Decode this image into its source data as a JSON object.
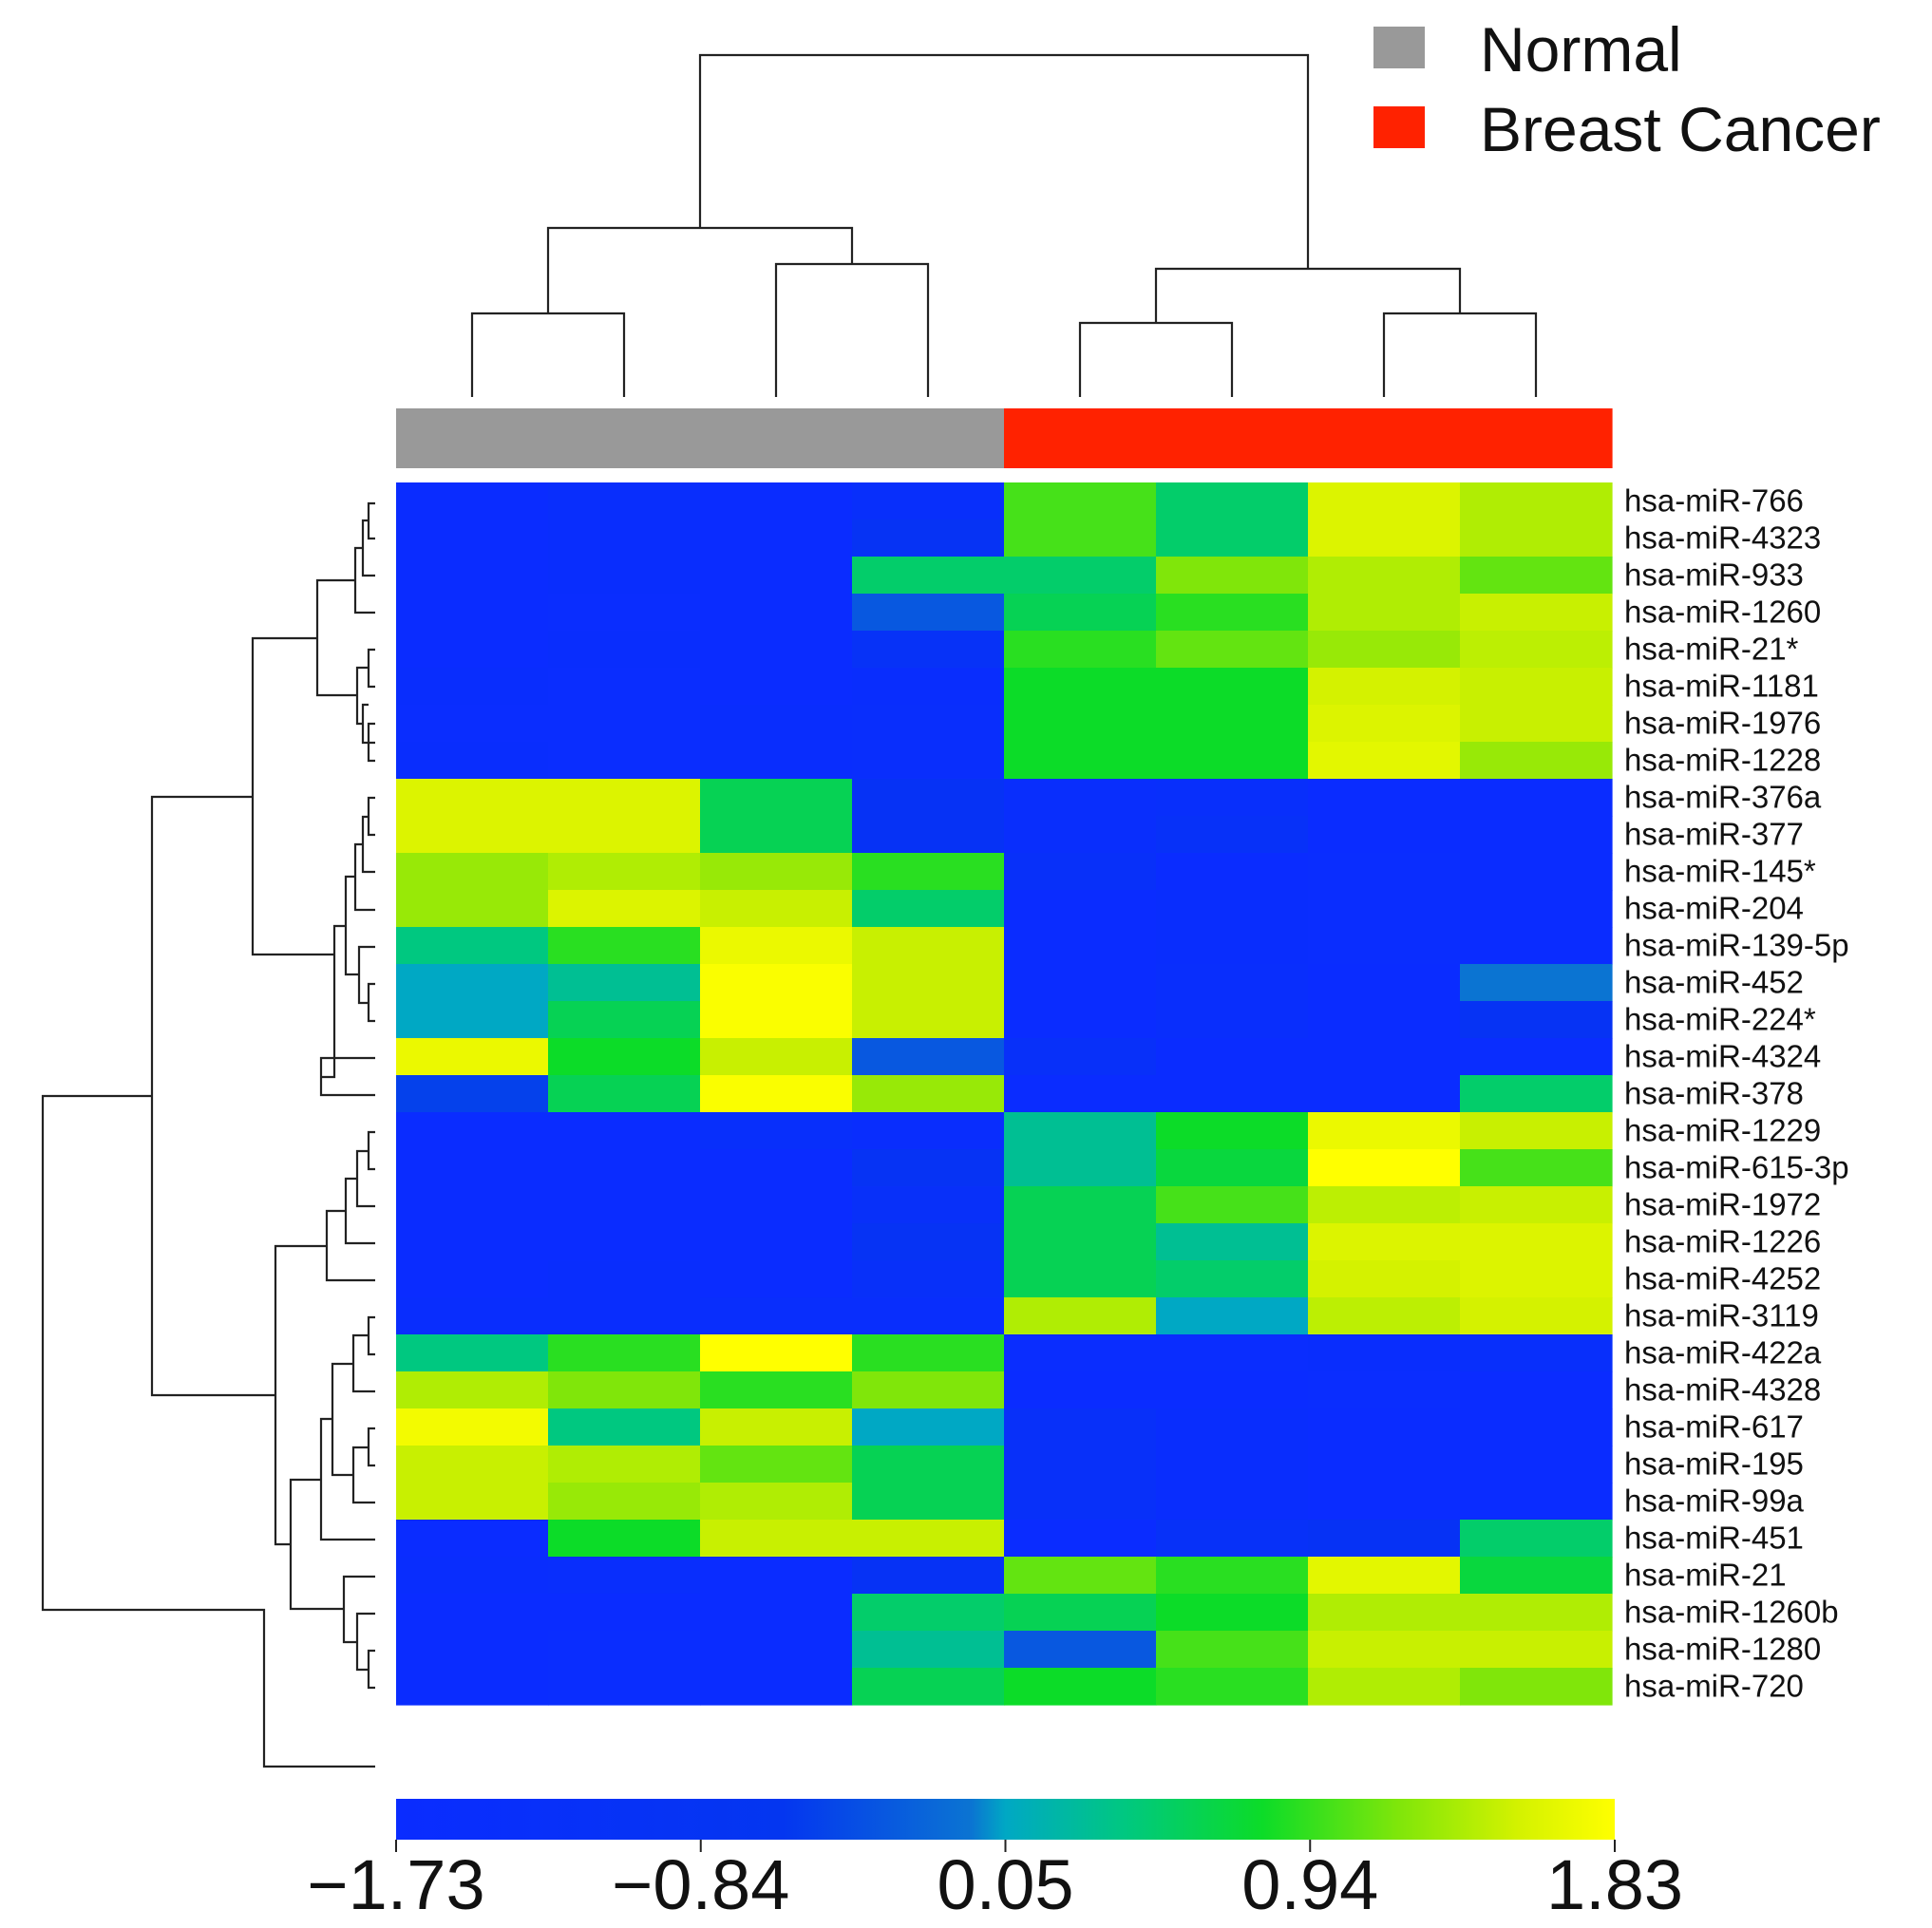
{
  "legend": [
    {
      "label": "Normal",
      "color": "#999999"
    },
    {
      "label": "Breast Cancer",
      "color": "#ff2200"
    }
  ],
  "colorbar": {
    "ticks": [
      "−1.73",
      "−0.84",
      "0.05",
      "0.94",
      "1.83"
    ],
    "tick_values": [
      -1.73,
      -0.84,
      0.05,
      0.94,
      1.83
    ],
    "stops": [
      {
        "v": -1.73,
        "c": "#0a2cff"
      },
      {
        "v": -0.6,
        "c": "#0436f0"
      },
      {
        "v": -0.05,
        "c": "#0b74d2"
      },
      {
        "v": 0.05,
        "c": "#00a8c4"
      },
      {
        "v": 0.4,
        "c": "#00c880"
      },
      {
        "v": 0.8,
        "c": "#0cdc28"
      },
      {
        "v": 1.2,
        "c": "#80e60a"
      },
      {
        "v": 1.55,
        "c": "#d4f200"
      },
      {
        "v": 1.83,
        "c": "#ffff00"
      }
    ]
  },
  "chart_data": {
    "type": "heatmap",
    "title": "",
    "vmin": -1.73,
    "vmax": 1.83,
    "samples": [
      {
        "group": "Normal"
      },
      {
        "group": "Normal"
      },
      {
        "group": "Normal"
      },
      {
        "group": "Normal"
      },
      {
        "group": "Breast Cancer"
      },
      {
        "group": "Breast Cancer"
      },
      {
        "group": "Breast Cancer"
      },
      {
        "group": "Breast Cancer"
      }
    ],
    "rows": [
      {
        "name": "hsa-miR-766",
        "values": [
          -1.7,
          -1.5,
          -1.7,
          -1.4,
          1.0,
          0.5,
          1.6,
          1.4
        ]
      },
      {
        "name": "hsa-miR-4323",
        "values": [
          -1.7,
          -1.6,
          -1.7,
          -0.9,
          1.0,
          0.5,
          1.6,
          1.4
        ]
      },
      {
        "name": "hsa-miR-933",
        "values": [
          -1.7,
          -1.6,
          -1.7,
          0.5,
          0.5,
          1.2,
          1.4,
          1.1
        ]
      },
      {
        "name": "hsa-miR-1260",
        "values": [
          -1.7,
          -1.65,
          -1.7,
          -0.3,
          0.6,
          0.9,
          1.4,
          1.5
        ]
      },
      {
        "name": "hsa-miR-21*",
        "values": [
          -1.7,
          -1.6,
          -1.7,
          -1.1,
          0.9,
          1.1,
          1.3,
          1.45
        ]
      },
      {
        "name": "hsa-miR-1181",
        "values": [
          -1.6,
          -1.65,
          -1.7,
          -1.6,
          0.8,
          0.8,
          1.55,
          1.5
        ]
      },
      {
        "name": "hsa-miR-1976",
        "values": [
          -1.65,
          -1.65,
          -1.6,
          -1.5,
          0.8,
          0.8,
          1.6,
          1.5
        ]
      },
      {
        "name": "hsa-miR-1228",
        "values": [
          -1.6,
          -1.65,
          -1.6,
          -1.5,
          0.8,
          0.8,
          1.65,
          1.3
        ]
      },
      {
        "name": "hsa-miR-376a",
        "values": [
          1.6,
          1.6,
          0.6,
          -1.0,
          -1.5,
          -1.4,
          -1.7,
          -1.7
        ]
      },
      {
        "name": "hsa-miR-377",
        "values": [
          1.6,
          1.6,
          0.6,
          -1.0,
          -1.5,
          -1.2,
          -1.7,
          -1.7
        ]
      },
      {
        "name": "hsa-miR-145*",
        "values": [
          1.3,
          1.4,
          1.3,
          0.9,
          -1.3,
          -1.7,
          -1.65,
          -1.7
        ]
      },
      {
        "name": "hsa-miR-204",
        "values": [
          1.3,
          1.6,
          1.5,
          0.5,
          -1.7,
          -1.6,
          -1.65,
          -1.7
        ]
      },
      {
        "name": "hsa-miR-139-5p",
        "values": [
          0.4,
          0.9,
          1.7,
          1.5,
          -1.7,
          -1.6,
          -1.65,
          -1.7
        ]
      },
      {
        "name": "hsa-miR-452",
        "values": [
          0.05,
          0.3,
          1.8,
          1.5,
          -1.7,
          -1.5,
          -1.7,
          -0.05
        ]
      },
      {
        "name": "hsa-miR-224*",
        "values": [
          0.05,
          0.6,
          1.8,
          1.5,
          -1.7,
          -1.5,
          -1.7,
          -0.9
        ]
      },
      {
        "name": "hsa-miR-4324",
        "values": [
          1.7,
          0.8,
          1.5,
          -0.3,
          -1.3,
          -1.7,
          -1.7,
          -1.65
        ]
      },
      {
        "name": "hsa-miR-378",
        "values": [
          -0.5,
          0.6,
          1.8,
          1.3,
          -1.7,
          -1.7,
          -1.7,
          0.5
        ]
      },
      {
        "name": "hsa-miR-1229",
        "values": [
          -1.7,
          -1.7,
          -1.4,
          -1.6,
          0.3,
          0.8,
          1.7,
          1.5
        ]
      },
      {
        "name": "hsa-miR-615-3p",
        "values": [
          -1.7,
          -1.7,
          -1.7,
          -0.9,
          0.3,
          0.7,
          1.83,
          1.0
        ]
      },
      {
        "name": "hsa-miR-1972",
        "values": [
          -1.7,
          -1.7,
          -1.7,
          -1.3,
          0.6,
          1.0,
          1.45,
          1.5
        ]
      },
      {
        "name": "hsa-miR-1226",
        "values": [
          -1.7,
          -1.7,
          -1.7,
          -0.9,
          0.6,
          0.3,
          1.6,
          1.6
        ]
      },
      {
        "name": "hsa-miR-4252",
        "values": [
          -1.7,
          -1.6,
          -1.7,
          -1.3,
          0.6,
          0.5,
          1.55,
          1.6
        ]
      },
      {
        "name": "hsa-miR-3119",
        "values": [
          -1.6,
          -1.6,
          -1.5,
          -1.5,
          1.4,
          0.05,
          1.45,
          1.55
        ]
      },
      {
        "name": "hsa-miR-422a",
        "values": [
          0.4,
          0.9,
          1.83,
          0.9,
          -1.65,
          -1.65,
          -1.6,
          -1.4
        ]
      },
      {
        "name": "hsa-miR-4328",
        "values": [
          1.4,
          1.2,
          0.9,
          1.2,
          -1.7,
          -1.7,
          -1.65,
          -1.7
        ]
      },
      {
        "name": "hsa-miR-617",
        "values": [
          1.75,
          0.4,
          1.5,
          0.05,
          -1.3,
          -1.6,
          -1.7,
          -1.7
        ]
      },
      {
        "name": "hsa-miR-195",
        "values": [
          1.5,
          1.4,
          1.1,
          0.6,
          -1.3,
          -1.6,
          -1.7,
          -1.7
        ]
      },
      {
        "name": "hsa-miR-99a",
        "values": [
          1.5,
          1.3,
          1.4,
          0.6,
          -1.3,
          -1.6,
          -1.7,
          -1.7
        ]
      },
      {
        "name": "hsa-miR-451",
        "values": [
          -1.7,
          0.8,
          1.5,
          1.5,
          -1.7,
          -1.2,
          -1.0,
          0.5
        ]
      },
      {
        "name": "hsa-miR-21",
        "values": [
          -1.6,
          -1.5,
          -1.7,
          -1.0,
          1.1,
          0.9,
          1.65,
          0.7
        ]
      },
      {
        "name": "hsa-miR-1260b",
        "values": [
          -1.7,
          -1.7,
          -1.7,
          0.5,
          0.6,
          0.8,
          1.4,
          1.4
        ]
      },
      {
        "name": "hsa-miR-1280",
        "values": [
          -1.7,
          -1.65,
          -1.7,
          0.3,
          -0.3,
          1.0,
          1.5,
          1.5
        ]
      },
      {
        "name": "hsa-miR-720",
        "values": [
          -1.7,
          -1.65,
          -1.7,
          0.6,
          0.8,
          0.9,
          1.4,
          1.2
        ]
      }
    ]
  }
}
